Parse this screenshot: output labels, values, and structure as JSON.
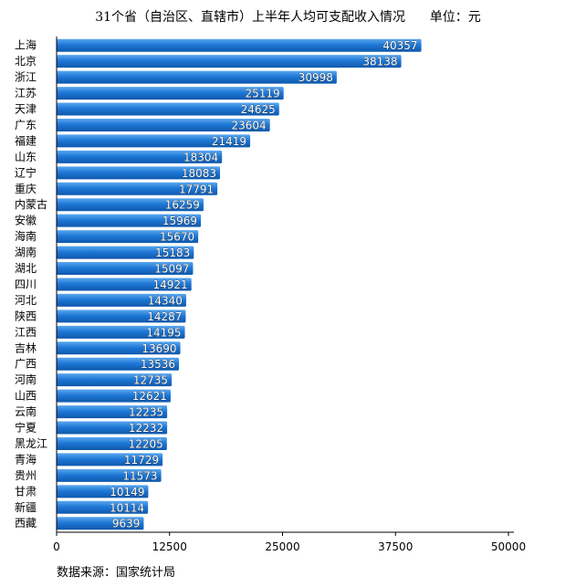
{
  "chart_data": {
    "type": "bar",
    "orientation": "horizontal",
    "title": "31个省（自治区、直辖市）上半年人均可支配收入情况",
    "unit": "单位：元",
    "source": "数据来源：国家统计局",
    "categories": [
      "上海",
      "北京",
      "浙江",
      "江苏",
      "天津",
      "广东",
      "福建",
      "山东",
      "辽宁",
      "重庆",
      "内蒙古",
      "安徽",
      "海南",
      "湖南",
      "湖北",
      "四川",
      "河北",
      "陕西",
      "江西",
      "吉林",
      "广西",
      "河南",
      "山西",
      "云南",
      "宁夏",
      "黑龙江",
      "青海",
      "贵州",
      "甘肃",
      "新疆",
      "西藏"
    ],
    "values": [
      40357,
      38138,
      30998,
      25119,
      24625,
      23604,
      21419,
      18304,
      18083,
      17791,
      16259,
      15969,
      15670,
      15183,
      15097,
      14921,
      14340,
      14287,
      14195,
      13690,
      13536,
      12735,
      12621,
      12235,
      12232,
      12205,
      11729,
      11573,
      10149,
      10114,
      9639
    ],
    "value_labels": [
      "40357",
      "38138",
      "30998",
      "25119",
      "24625",
      "23604",
      "21419",
      "18304",
      "18083",
      "17791",
      "16259",
      "15969",
      "15670",
      "15183",
      "15097",
      "14921",
      "14340",
      "14287",
      "14195",
      "13690",
      "13536",
      "12735",
      "12621",
      "12235",
      "12232",
      "12205",
      "11729",
      "11573",
      "10149",
      "10114",
      "9639"
    ],
    "xlim": [
      0,
      50000
    ],
    "xticks": [
      "0",
      "12500",
      "25000",
      "37500",
      "50000"
    ],
    "grid": false,
    "bar_color": "#1f78d6"
  }
}
